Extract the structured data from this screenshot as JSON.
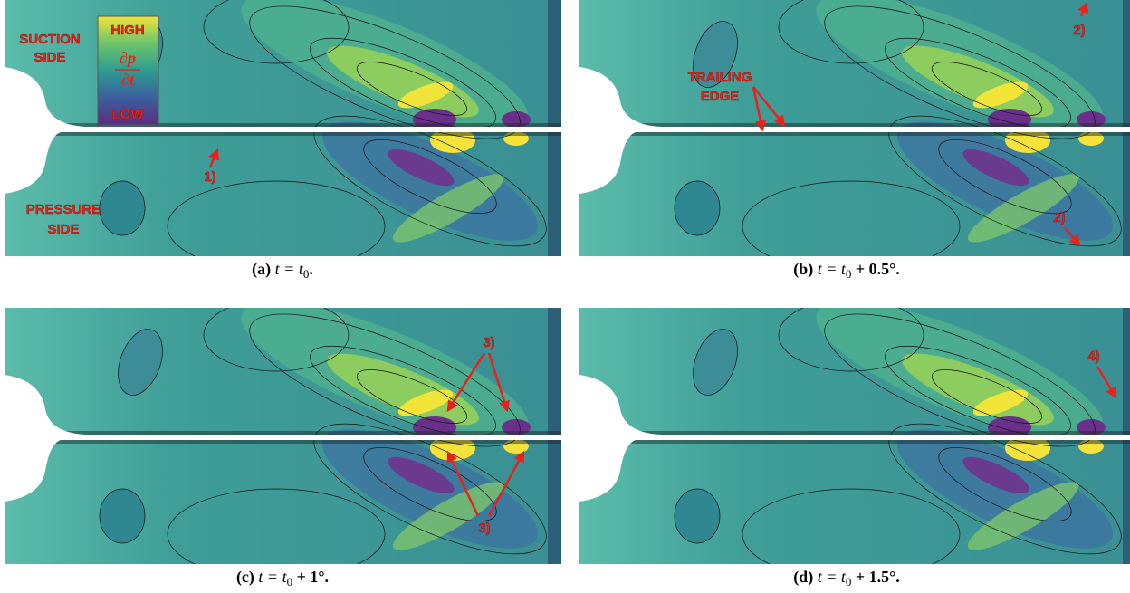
{
  "legend": {
    "high": "HIGH",
    "numerator": "∂p",
    "denominator": "∂t",
    "low": "LOW"
  },
  "panels": [
    {
      "label": "(a)",
      "math": "t = t",
      "sub": "0",
      "rest": ".",
      "annotations": {
        "suction": [
          "SUCTION",
          "SIDE"
        ],
        "pressure": [
          "PRESSURE",
          "SIDE"
        ],
        "marker": "1)"
      }
    },
    {
      "label": "(b)",
      "math": "t = t",
      "sub": "0",
      "rest": " + 0.5°.",
      "annotations": {
        "trailing_edge": [
          "TRAILING",
          "EDGE"
        ],
        "marker_top": "2)",
        "marker_bottom": "2)"
      }
    },
    {
      "label": "(c)",
      "math": "t = t",
      "sub": "0",
      "rest": " + 1°.",
      "annotations": {
        "marker_top": "3)",
        "marker_bottom": "3)"
      }
    },
    {
      "label": "(d)",
      "math": "t = t",
      "sub": "0",
      "rest": " + 1.5°.",
      "annotations": {
        "marker": "4)"
      }
    }
  ]
}
